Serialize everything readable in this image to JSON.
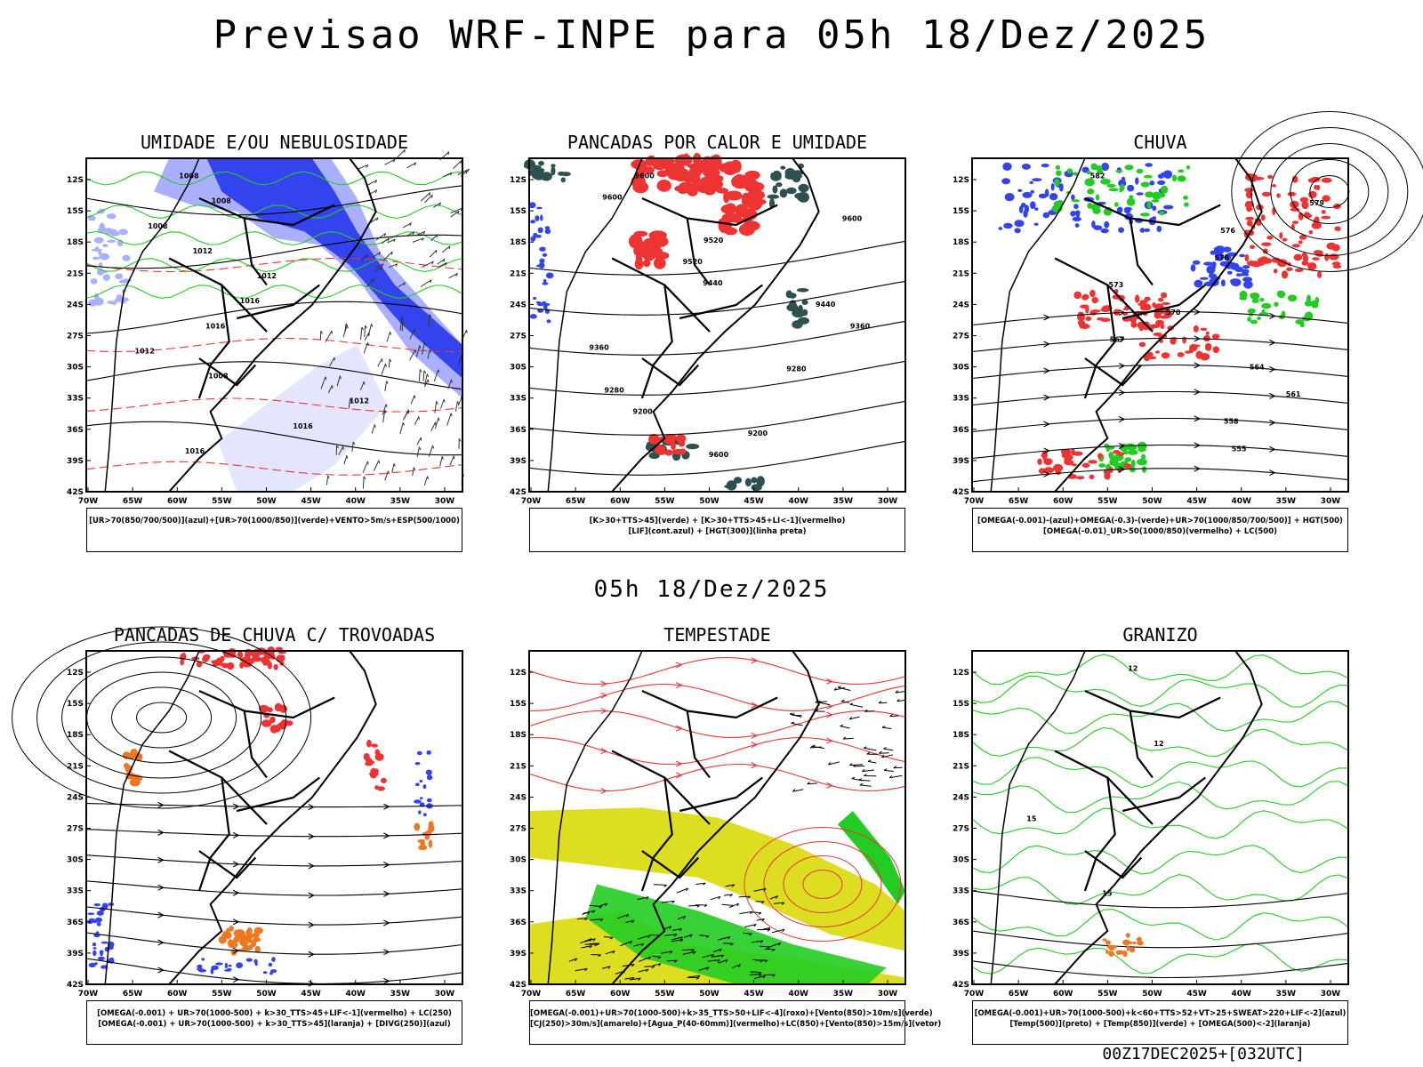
{
  "title": "Previsao WRF-INPE  para 05h 18/Dez/2025",
  "mid_time": "05h 18/Dez/2025",
  "footer": "00Z17DEC2025+[032UTC]",
  "colors": {
    "red": "#ee3333",
    "blue": "#3344ee",
    "lightblue": "#aab0ff",
    "green": "#22cc22",
    "darkteal": "#2f5050",
    "yellow": "#dddd22",
    "orange": "#ee7722",
    "black": "#000000"
  },
  "chart_data": [
    {
      "type": "map",
      "title": "UMIDADE E/OU NEBULOSIDADE",
      "x_ticks": [
        "70W",
        "65W",
        "60W",
        "55W",
        "50W",
        "45W",
        "40W",
        "35W",
        "30W"
      ],
      "y_ticks": [
        "12S",
        "15S",
        "18S",
        "21S",
        "24S",
        "27S",
        "30S",
        "33S",
        "36S",
        "39S",
        "42S"
      ],
      "contour_labels": [
        "1008",
        "1008",
        "1008",
        "1012",
        "1012",
        "1016",
        "1016",
        "1012",
        "1008",
        "1012",
        "1016",
        "1016"
      ],
      "legend": [
        "[UR>70(850/700/500)](azul)+[UR>70(1000/850)](verde)+VENTO>5m/s+ESP(500/1000)"
      ]
    },
    {
      "type": "map",
      "title": "PANCADAS POR CALOR E UMIDADE",
      "x_ticks": [
        "70W",
        "65W",
        "60W",
        "55W",
        "50W",
        "45W",
        "40W",
        "35W",
        "30W"
      ],
      "y_ticks": [
        "12S",
        "15S",
        "18S",
        "21S",
        "24S",
        "27S",
        "30S",
        "33S",
        "36S",
        "39S",
        "42S"
      ],
      "contour_labels": [
        "9600",
        "9600",
        "9600",
        "9520",
        "9520",
        "9440",
        "9440",
        "9360",
        "9360",
        "9280",
        "9280",
        "9200",
        "9200",
        "9600"
      ],
      "legend": [
        "[K>30+TTS>45](verde) + [K>30+TTS>45+LI<-1](vermelho)",
        "[LIF](cont.azul) + [HGT(300)](linha preta)"
      ]
    },
    {
      "type": "map",
      "title": "CHUVA",
      "x_ticks": [
        "70W",
        "65W",
        "60W",
        "55W",
        "50W",
        "45W",
        "40W",
        "35W",
        "30W"
      ],
      "y_ticks": [
        "12S",
        "15S",
        "18S",
        "21S",
        "24S",
        "27S",
        "30S",
        "33S",
        "36S",
        "39S",
        "42S"
      ],
      "contour_labels": [
        "582",
        "579",
        "576",
        "576",
        "573",
        "570",
        "567",
        "564",
        "561",
        "558",
        "555"
      ],
      "legend": [
        "[OMEGA(-0.001)-(azul)+OMEGA(-0.3)-(verde)+UR>70(1000/850/700/500)] + HGT(500)",
        "[OMEGA(-0.01)_UR>50(1000/850)(vermelho) + LC(500)"
      ]
    },
    {
      "type": "map",
      "title": "PANCADAS DE CHUVA C/ TROVOADAS",
      "x_ticks": [
        "70W",
        "65W",
        "60W",
        "55W",
        "50W",
        "45W",
        "40W",
        "35W",
        "30W"
      ],
      "y_ticks": [
        "12S",
        "15S",
        "18S",
        "21S",
        "24S",
        "27S",
        "30S",
        "33S",
        "36S",
        "39S",
        "42S"
      ],
      "contour_labels": [],
      "legend": [
        "[OMEGA(-0.001) + UR>70(1000-500) + k>30_TTS>45+LIF<-1](vermelho) + LC(250)",
        "[OMEGA(-0.001) + UR>70(1000-500) + k>30_TTS>45](laranja) + [DIVG(250)](azul)"
      ]
    },
    {
      "type": "map",
      "title": "TEMPESTADE",
      "x_ticks": [
        "70W",
        "65W",
        "60W",
        "55W",
        "50W",
        "45W",
        "40W",
        "35W",
        "30W"
      ],
      "y_ticks": [
        "12S",
        "15S",
        "18S",
        "21S",
        "24S",
        "27S",
        "30S",
        "33S",
        "36S",
        "39S",
        "42S"
      ],
      "contour_labels": [],
      "legend": [
        "[OMEGA(-0.001)+UR>70(1000-500)+k>35_TTS>50+LIF<-4](roxo)+[Vento(850)>10m/s](verde)",
        "[CJ(250)>30m/s](amarelo)+[Agua_P(40-60mm)](vermelho)+LC(850)+[Vento(850)>15m/s](vetor)"
      ]
    },
    {
      "type": "map",
      "title": "GRANIZO",
      "x_ticks": [
        "70W",
        "65W",
        "60W",
        "55W",
        "50W",
        "45W",
        "40W",
        "35W",
        "30W"
      ],
      "y_ticks": [
        "12S",
        "15S",
        "18S",
        "21S",
        "24S",
        "27S",
        "30S",
        "33S",
        "36S",
        "39S",
        "42S"
      ],
      "contour_labels": [
        "12",
        "12",
        "15",
        "15"
      ],
      "legend": [
        "[OMEGA(-0.001)+UR>70(1000-500)+k<60+TTS>52+VT>25+SWEAT>220+LIF<-2](azul)",
        "[Temp(500)](preto) + [Temp(850)](verde) + [OMEGA(500)<-2](laranja)"
      ]
    }
  ]
}
